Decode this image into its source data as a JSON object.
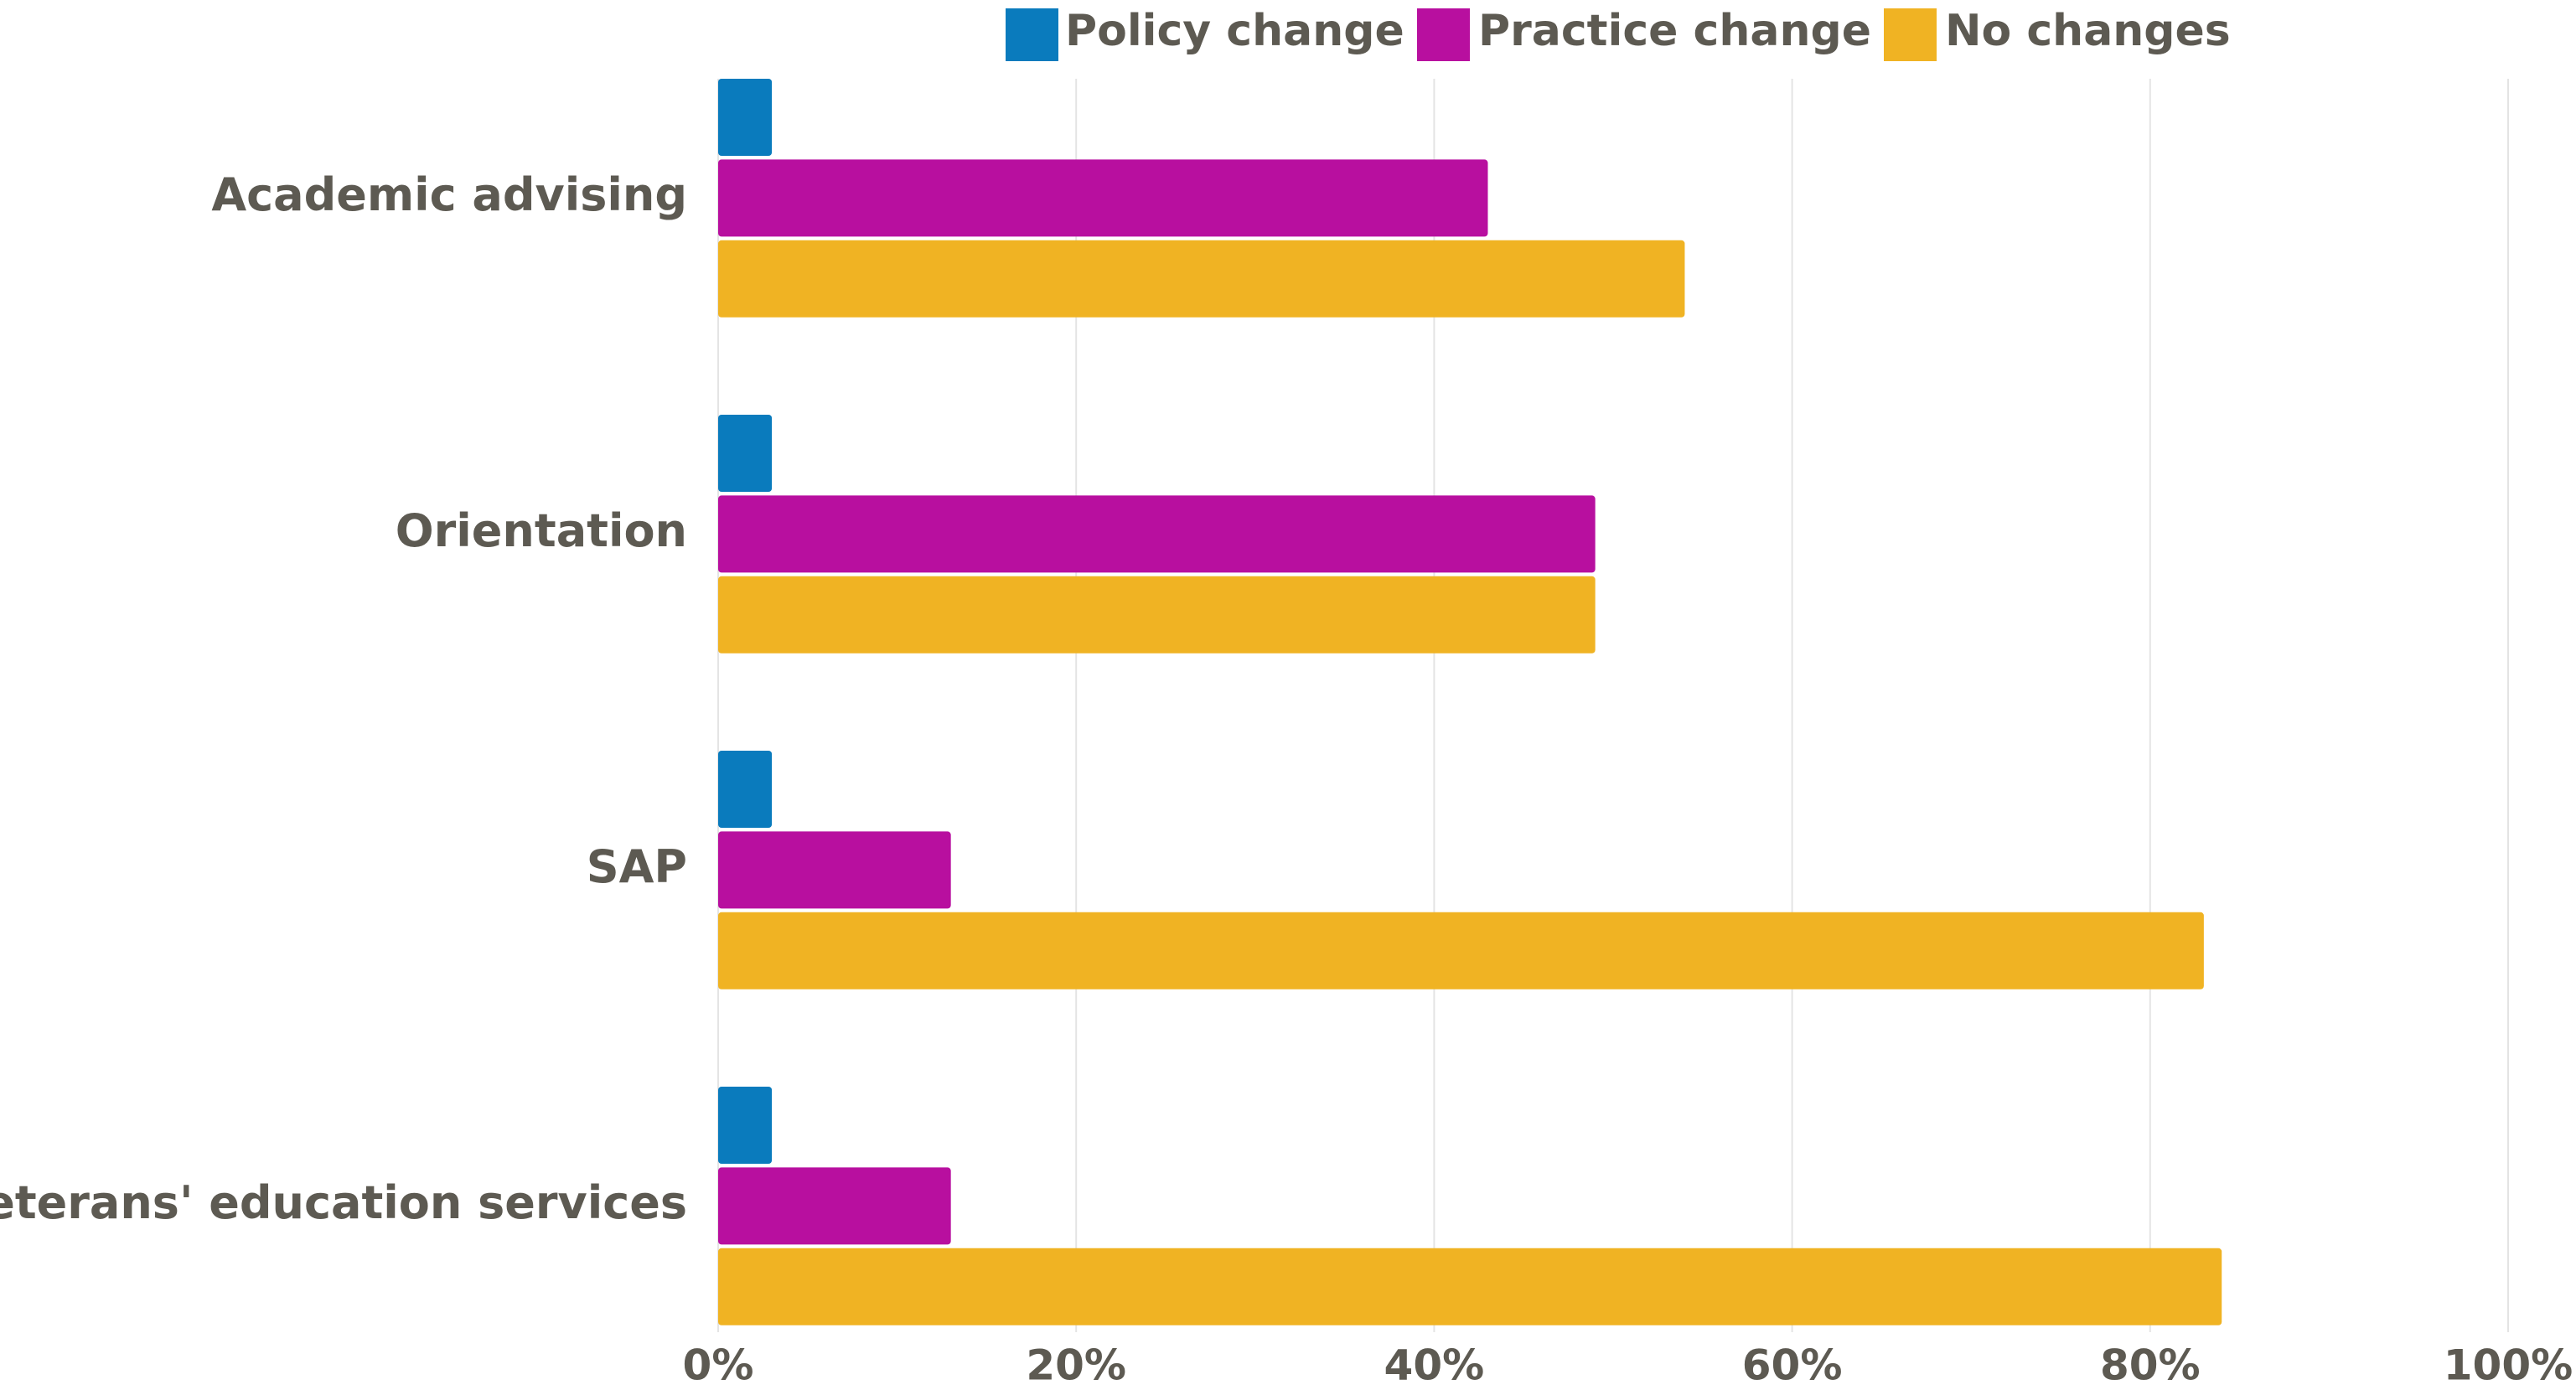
{
  "chart_data": {
    "type": "hbar",
    "categories": [
      "Academic advising",
      "Orientation",
      "SAP",
      "Veterans' education services"
    ],
    "series": [
      {
        "name": "Policy change",
        "color": "#0a7bbd",
        "values": [
          3,
          3,
          3,
          3
        ]
      },
      {
        "name": "Practice change",
        "color": "#b80f9f",
        "values": [
          43,
          49,
          13,
          13
        ]
      },
      {
        "name": "No changes",
        "color": "#f0b323",
        "values": [
          54,
          49,
          83,
          84
        ]
      }
    ],
    "xlim": [
      0,
      100
    ],
    "xticks": [
      {
        "value": 0,
        "label": "0%"
      },
      {
        "value": 20,
        "label": "20%"
      },
      {
        "value": 40,
        "label": "40%"
      },
      {
        "value": 60,
        "label": "60%"
      },
      {
        "value": 80,
        "label": "80%"
      },
      {
        "value": 100,
        "label": "100%"
      }
    ],
    "grid": true,
    "legend": "top"
  }
}
